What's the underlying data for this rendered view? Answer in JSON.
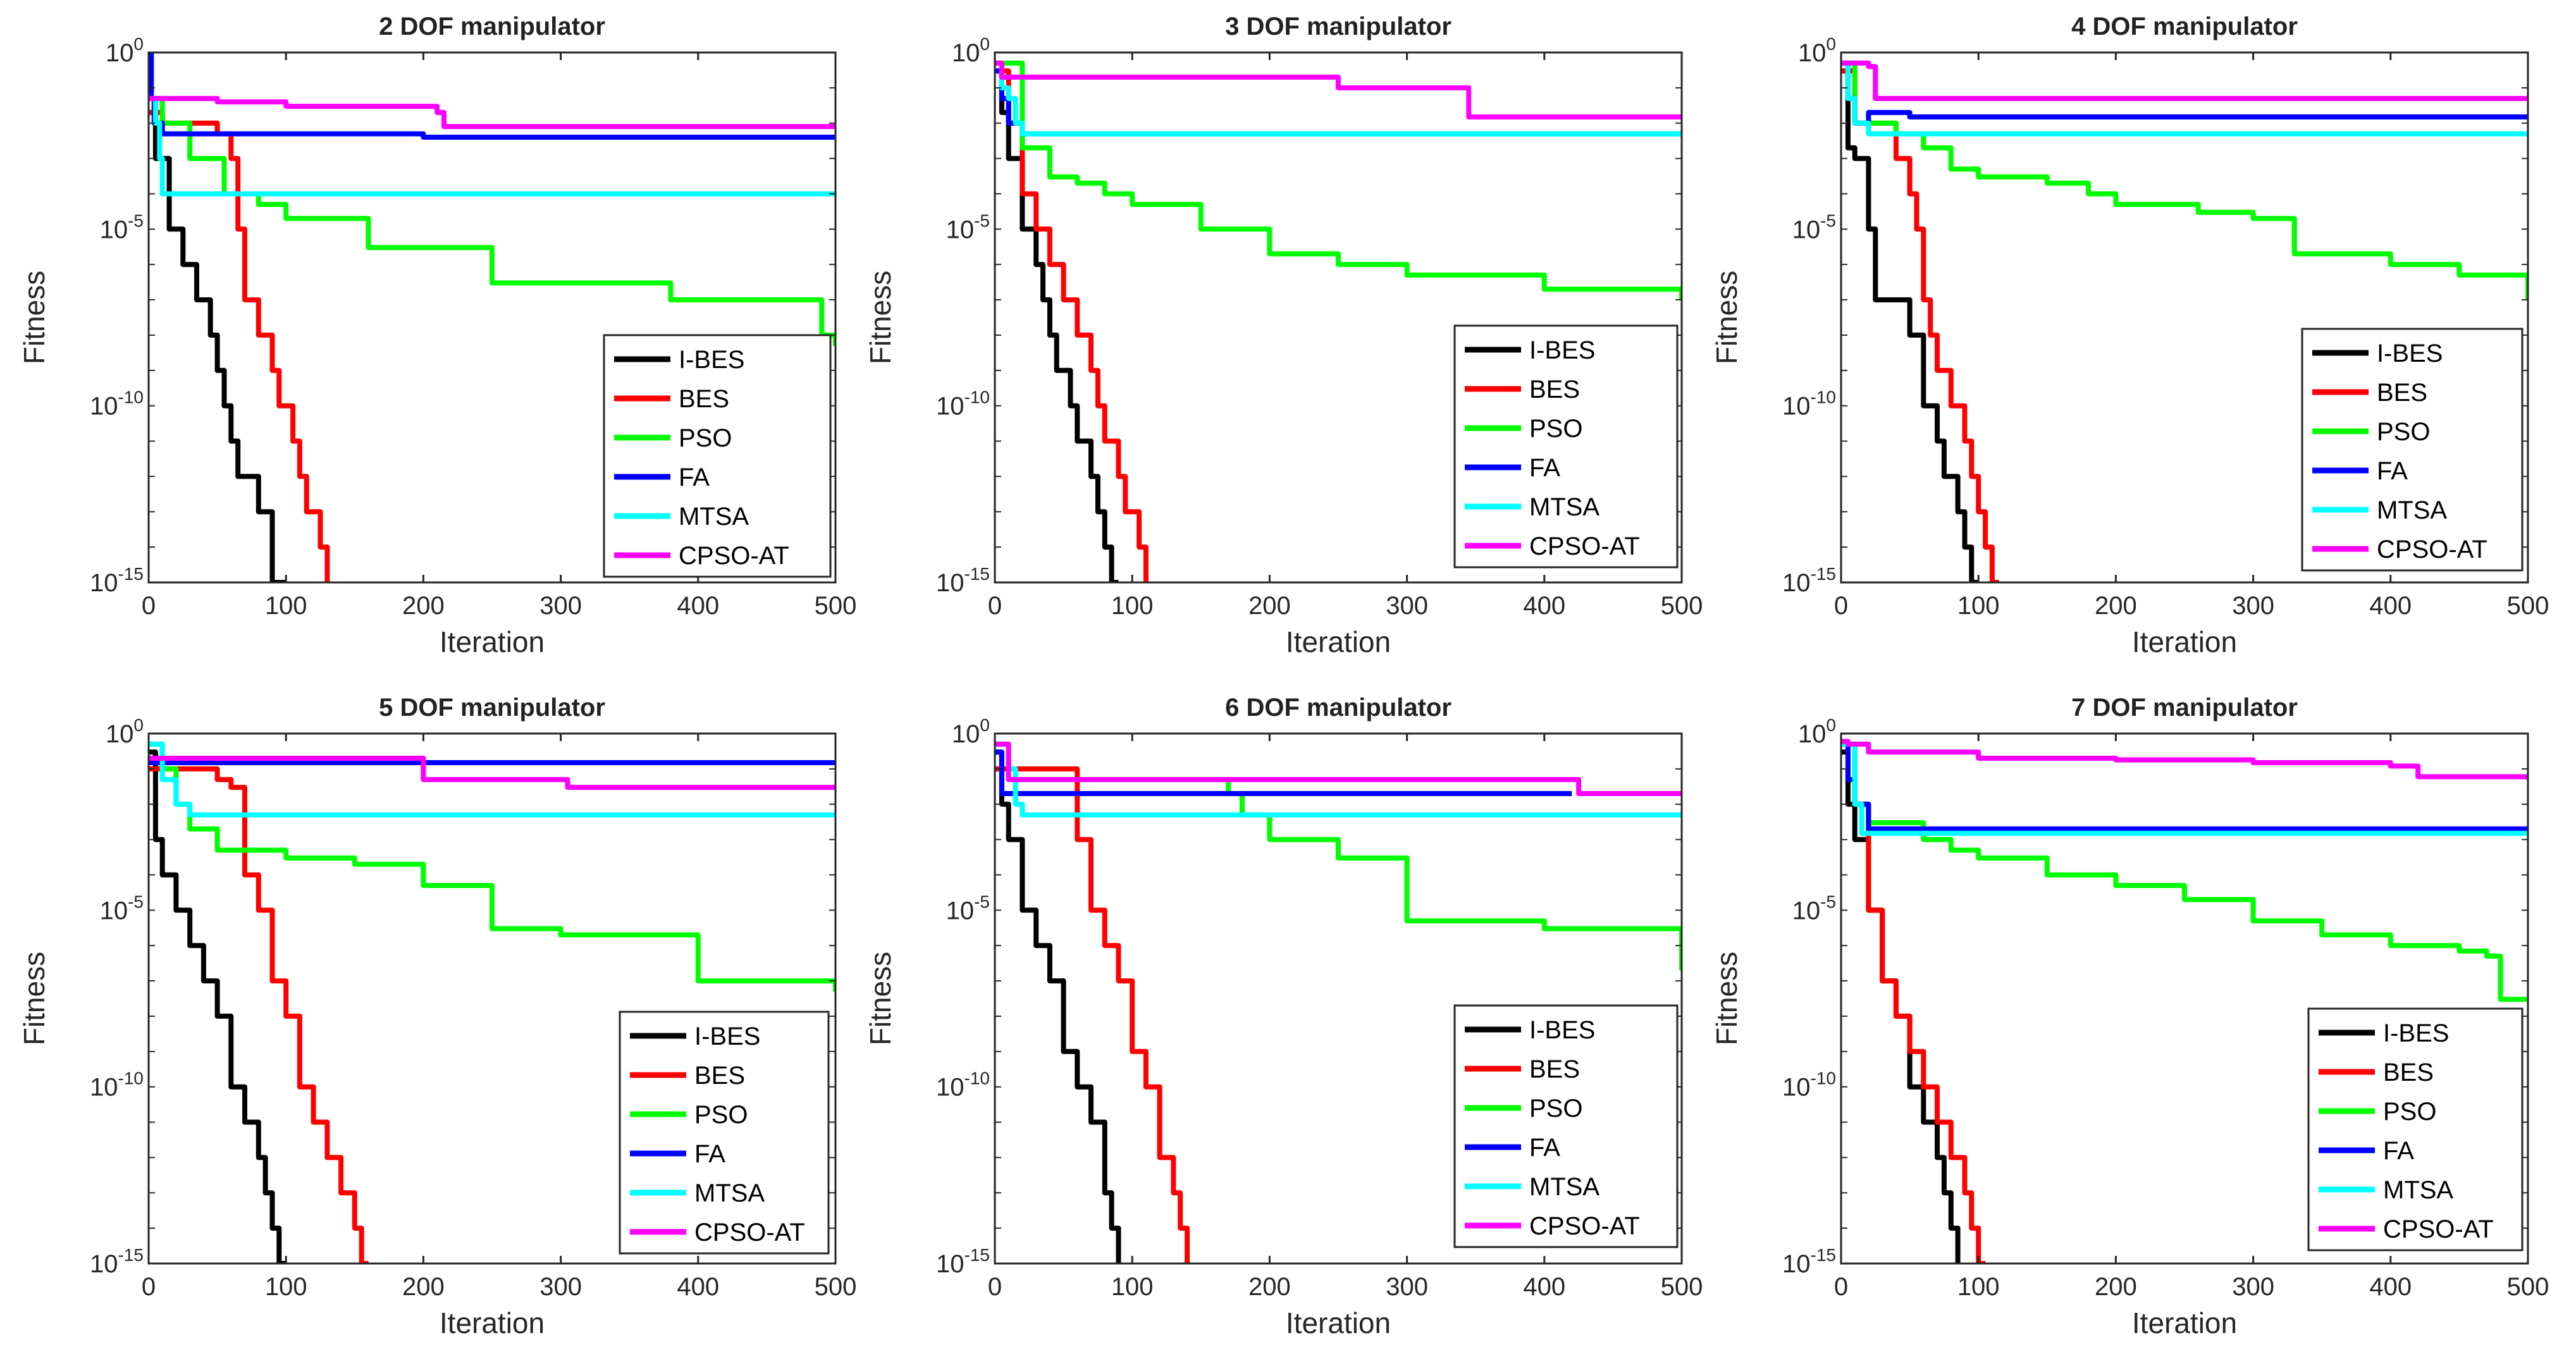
{
  "chart_data": [
    {
      "type": "line",
      "title": "2 DOF manipulator",
      "xlabel": "Iteration",
      "ylabel": "Fitness",
      "xlim": [
        0,
        500
      ],
      "ylim": [
        1e-15,
        1
      ],
      "yscale": "log",
      "xticks": [
        "0",
        "100",
        "200",
        "300",
        "400",
        "500"
      ],
      "series": [
        {
          "name": "I-BES",
          "color": "#000000",
          "x": [
            0,
            5,
            15,
            25,
            35,
            45,
            50,
            55,
            60,
            65,
            70,
            80,
            85,
            90,
            95,
            100
          ],
          "y": [
            0.02,
            0.001,
            1e-05,
            1e-06,
            1e-07,
            1e-08,
            1e-09,
            1e-10,
            1e-11,
            1e-12,
            1e-12,
            1e-13,
            1e-13,
            1e-15,
            1e-15,
            1e-15
          ]
        },
        {
          "name": "BES",
          "color": "#ff0000",
          "x": [
            0,
            10,
            50,
            60,
            65,
            70,
            80,
            90,
            95,
            100,
            105,
            110,
            115,
            120,
            125,
            130
          ],
          "y": [
            0.02,
            0.01,
            0.005,
            0.001,
            1e-05,
            1e-07,
            1e-08,
            1e-09,
            1e-10,
            1e-10,
            1e-11,
            1e-12,
            1e-13,
            1e-13,
            1e-14,
            1e-15
          ]
        },
        {
          "name": "PSO",
          "color": "#00ff00",
          "x": [
            0,
            10,
            30,
            55,
            80,
            100,
            160,
            250,
            380,
            490,
            500
          ],
          "y": [
            0.05,
            0.01,
            0.001,
            0.0001,
            5e-05,
            2e-05,
            3e-06,
            3e-07,
            1e-07,
            1e-08,
            5e-09
          ]
        },
        {
          "name": "FA",
          "color": "#0000ff",
          "x": [
            0,
            2,
            4,
            10,
            100,
            200,
            500
          ],
          "y": [
            1,
            0.05,
            0.01,
            0.005,
            0.005,
            0.004,
            0.004
          ]
        },
        {
          "name": "MTSA",
          "color": "#00ffff",
          "x": [
            0,
            5,
            8,
            10,
            20,
            50,
            500
          ],
          "y": [
            0.05,
            0.01,
            0.001,
            0.0001,
            0.0001,
            0.0001,
            0.0001
          ]
        },
        {
          "name": "CPSO-AT",
          "color": "#ff00ff",
          "x": [
            0,
            50,
            100,
            210,
            215,
            300,
            500
          ],
          "y": [
            0.05,
            0.04,
            0.03,
            0.02,
            0.008,
            0.008,
            0.008
          ]
        }
      ]
    },
    {
      "type": "line",
      "title": "3 DOF manipulator",
      "xlabel": "Iteration",
      "ylabel": "Fitness",
      "xlim": [
        0,
        500
      ],
      "ylim": [
        1e-15,
        1
      ],
      "yscale": "log",
      "xticks": [
        "0",
        "100",
        "200",
        "300",
        "400",
        "500"
      ],
      "series": [
        {
          "name": "I-BES",
          "color": "#000000",
          "x": [
            0,
            5,
            10,
            20,
            30,
            35,
            40,
            45,
            55,
            60,
            70,
            75,
            80,
            85,
            90
          ],
          "y": [
            0.3,
            0.02,
            0.001,
            1e-05,
            1e-06,
            1e-07,
            1e-08,
            1e-09,
            1e-10,
            1e-11,
            1e-12,
            1e-13,
            1e-14,
            1e-15,
            1e-15
          ]
        },
        {
          "name": "BES",
          "color": "#ff0000",
          "x": [
            0,
            10,
            20,
            30,
            40,
            50,
            60,
            70,
            75,
            80,
            90,
            95,
            100,
            105,
            110
          ],
          "y": [
            0.3,
            0.01,
            0.0001,
            1e-05,
            1e-06,
            1e-07,
            1e-08,
            1e-09,
            1e-10,
            1e-11,
            1e-12,
            1e-13,
            1e-13,
            1e-14,
            1e-15
          ]
        },
        {
          "name": "PSO",
          "color": "#00ff00",
          "x": [
            0,
            20,
            40,
            60,
            80,
            100,
            150,
            200,
            250,
            300,
            400,
            500
          ],
          "y": [
            0.5,
            0.002,
            0.0003,
            0.0002,
            0.0001,
            5e-05,
            1e-05,
            2e-06,
            1e-06,
            5e-07,
            2e-07,
            1e-07
          ]
        },
        {
          "name": "FA",
          "color": "#0000ff",
          "x": [
            0,
            5,
            10,
            20,
            500
          ],
          "y": [
            0.3,
            0.05,
            0.01,
            0.005,
            0.005
          ]
        },
        {
          "name": "MTSA",
          "color": "#00ffff",
          "x": [
            0,
            5,
            10,
            15,
            20,
            500
          ],
          "y": [
            0.5,
            0.1,
            0.05,
            0.01,
            0.005,
            0.005
          ]
        },
        {
          "name": "CPSO-AT",
          "color": "#ff00ff",
          "x": [
            0,
            5,
            100,
            200,
            250,
            340,
            345,
            500
          ],
          "y": [
            0.5,
            0.2,
            0.2,
            0.2,
            0.1,
            0.1,
            0.015,
            0.015
          ]
        }
      ]
    },
    {
      "type": "line",
      "title": "4 DOF manipulator",
      "xlabel": "Iteration",
      "ylabel": "Fitness",
      "xlim": [
        0,
        500
      ],
      "ylim": [
        1e-15,
        1
      ],
      "yscale": "log",
      "xticks": [
        "0",
        "100",
        "200",
        "300",
        "400",
        "500"
      ],
      "series": [
        {
          "name": "I-BES",
          "color": "#000000",
          "x": [
            0,
            5,
            10,
            20,
            25,
            45,
            50,
            60,
            70,
            75,
            85,
            90,
            95,
            100
          ],
          "y": [
            0.3,
            0.002,
            0.001,
            1e-05,
            1e-07,
            1e-07,
            1e-08,
            1e-10,
            1e-11,
            1e-12,
            1e-13,
            1e-14,
            1e-15,
            1e-15
          ]
        },
        {
          "name": "BES",
          "color": "#ff0000",
          "x": [
            0,
            10,
            40,
            50,
            55,
            60,
            65,
            70,
            80,
            90,
            95,
            100,
            105,
            110,
            115
          ],
          "y": [
            0.3,
            0.01,
            0.001,
            0.0001,
            1e-05,
            1e-07,
            1e-08,
            1e-09,
            1e-10,
            1e-11,
            1e-12,
            1e-13,
            1e-14,
            1e-15,
            1e-15
          ]
        },
        {
          "name": "PSO",
          "color": "#00ff00",
          "x": [
            0,
            10,
            40,
            60,
            80,
            100,
            150,
            180,
            200,
            260,
            300,
            330,
            400,
            450,
            500
          ],
          "y": [
            0.5,
            0.01,
            0.005,
            0.002,
            0.0005,
            0.0003,
            0.0002,
            0.0001,
            5e-05,
            3e-05,
            2e-05,
            2e-06,
            1e-06,
            5e-07,
            1e-07
          ]
        },
        {
          "name": "FA",
          "color": "#0000ff",
          "x": [
            0,
            5,
            10,
            20,
            30,
            50,
            500
          ],
          "y": [
            0.5,
            0.05,
            0.01,
            0.02,
            0.02,
            0.015,
            0.015
          ]
        },
        {
          "name": "MTSA",
          "color": "#00ffff",
          "x": [
            0,
            5,
            10,
            20,
            500
          ],
          "y": [
            0.5,
            0.05,
            0.01,
            0.005,
            0.005
          ]
        },
        {
          "name": "CPSO-AT",
          "color": "#ff00ff",
          "x": [
            0,
            20,
            25,
            500
          ],
          "y": [
            0.5,
            0.4,
            0.05,
            0.05
          ]
        }
      ]
    },
    {
      "type": "line",
      "title": "5 DOF manipulator",
      "xlabel": "Iteration",
      "ylabel": "Fitness",
      "xlim": [
        0,
        500
      ],
      "ylim": [
        1e-15,
        1
      ],
      "yscale": "log",
      "xticks": [
        "0",
        "100",
        "200",
        "300",
        "400",
        "500"
      ],
      "series": [
        {
          "name": "I-BES",
          "color": "#000000",
          "x": [
            0,
            5,
            10,
            20,
            30,
            40,
            50,
            60,
            70,
            80,
            85,
            90,
            95,
            100
          ],
          "y": [
            0.3,
            0.001,
            0.0001,
            1e-05,
            1e-06,
            1e-07,
            1e-08,
            1e-10,
            1e-11,
            1e-12,
            1e-13,
            1e-14,
            1e-15,
            1e-15
          ]
        },
        {
          "name": "BES",
          "color": "#ff0000",
          "x": [
            0,
            50,
            60,
            70,
            80,
            90,
            100,
            110,
            120,
            130,
            140,
            150,
            155,
            160
          ],
          "y": [
            0.1,
            0.05,
            0.03,
            0.0001,
            1e-05,
            1e-07,
            1e-08,
            1e-10,
            1e-11,
            1e-12,
            1e-13,
            1e-14,
            1e-15,
            1e-15
          ]
        },
        {
          "name": "PSO",
          "color": "#00ff00",
          "x": [
            0,
            10,
            20,
            30,
            50,
            100,
            150,
            200,
            250,
            300,
            400,
            500
          ],
          "y": [
            0.5,
            0.1,
            0.01,
            0.002,
            0.0005,
            0.0003,
            0.0002,
            5e-05,
            3e-06,
            2e-06,
            1e-07,
            5e-08
          ]
        },
        {
          "name": "FA",
          "color": "#0000ff",
          "x": [
            0,
            500
          ],
          "y": [
            0.15,
            0.15
          ]
        },
        {
          "name": "MTSA",
          "color": "#00ffff",
          "x": [
            0,
            10,
            20,
            30,
            500
          ],
          "y": [
            0.5,
            0.05,
            0.01,
            0.005,
            0.005
          ]
        },
        {
          "name": "CPSO-AT",
          "color": "#ff00ff",
          "x": [
            0,
            100,
            200,
            300,
            305,
            500
          ],
          "y": [
            0.2,
            0.2,
            0.05,
            0.05,
            0.03,
            0.03
          ]
        }
      ]
    },
    {
      "type": "line",
      "title": "6 DOF manipulator",
      "xlabel": "Iteration",
      "ylabel": "Fitness",
      "xlim": [
        0,
        500
      ],
      "ylim": [
        1e-15,
        1
      ],
      "yscale": "log",
      "xticks": [
        "0",
        "100",
        "200",
        "300",
        "400",
        "500"
      ],
      "series": [
        {
          "name": "I-BES",
          "color": "#000000",
          "x": [
            0,
            5,
            10,
            20,
            30,
            40,
            50,
            60,
            70,
            80,
            85,
            90
          ],
          "y": [
            0.3,
            0.01,
            0.001,
            1e-05,
            1e-06,
            1e-07,
            1e-09,
            1e-10,
            1e-11,
            1e-13,
            1e-14,
            1e-15
          ]
        },
        {
          "name": "BES",
          "color": "#ff0000",
          "x": [
            0,
            50,
            60,
            70,
            80,
            90,
            100,
            110,
            120,
            130,
            135,
            140
          ],
          "y": [
            0.1,
            0.1,
            0.001,
            1e-05,
            1e-06,
            1e-07,
            1e-09,
            1e-10,
            1e-12,
            1e-13,
            1e-14,
            1e-15
          ]
        },
        {
          "name": "PSO",
          "color": "#00ff00",
          "x": [
            0,
            10,
            50,
            100,
            150,
            170,
            180,
            200,
            250,
            300,
            400,
            500
          ],
          "y": [
            0.5,
            0.05,
            0.05,
            0.05,
            0.05,
            0.02,
            0.005,
            0.001,
            0.0003,
            5e-06,
            3e-06,
            2e-07
          ]
        },
        {
          "name": "FA",
          "color": "#0000ff",
          "x": [
            0,
            5,
            10,
            420
          ],
          "y": [
            0.3,
            0.02,
            0.02,
            0.02
          ]
        },
        {
          "name": "MTSA",
          "color": "#00ffff",
          "x": [
            0,
            10,
            15,
            20,
            500
          ],
          "y": [
            0.5,
            0.1,
            0.01,
            0.005,
            0.005
          ]
        },
        {
          "name": "CPSO-AT",
          "color": "#ff00ff",
          "x": [
            0,
            10,
            400,
            420,
            425,
            500
          ],
          "y": [
            0.5,
            0.05,
            0.05,
            0.05,
            0.02,
            0.02
          ]
        }
      ]
    },
    {
      "type": "line",
      "title": "7 DOF manipulator",
      "xlabel": "Iteration",
      "ylabel": "Fitness",
      "xlim": [
        0,
        500
      ],
      "ylim": [
        1e-15,
        1
      ],
      "yscale": "log",
      "xticks": [
        "0",
        "100",
        "200",
        "300",
        "400",
        "500"
      ],
      "series": [
        {
          "name": "I-BES",
          "color": "#000000",
          "x": [
            0,
            5,
            10,
            20,
            30,
            40,
            50,
            60,
            70,
            75,
            80,
            85
          ],
          "y": [
            0.3,
            0.01,
            0.001,
            1e-05,
            1e-07,
            1e-08,
            1e-10,
            1e-11,
            1e-12,
            1e-13,
            1e-14,
            1e-15
          ]
        },
        {
          "name": "BES",
          "color": "#ff0000",
          "x": [
            0,
            10,
            20,
            30,
            40,
            50,
            60,
            70,
            80,
            90,
            95,
            100,
            105
          ],
          "y": [
            0.5,
            0.01,
            1e-05,
            1e-07,
            1e-08,
            1e-09,
            1e-10,
            1e-11,
            1e-12,
            1e-13,
            1e-14,
            1e-15,
            1e-15
          ]
        },
        {
          "name": "PSO",
          "color": "#00ff00",
          "x": [
            0,
            10,
            20,
            40,
            60,
            80,
            100,
            150,
            200,
            250,
            300,
            350,
            400,
            450,
            470,
            480,
            500
          ],
          "y": [
            0.5,
            0.01,
            0.003,
            0.003,
            0.001,
            0.0005,
            0.0003,
            0.0001,
            5e-05,
            2e-05,
            5e-06,
            2e-06,
            1e-06,
            7e-07,
            5e-07,
            3e-08,
            3e-08
          ]
        },
        {
          "name": "FA",
          "color": "#0000ff",
          "x": [
            0,
            5,
            10,
            20,
            500
          ],
          "y": [
            0.5,
            0.05,
            0.01,
            0.002,
            0.002
          ]
        },
        {
          "name": "MTSA",
          "color": "#00ffff",
          "x": [
            0,
            10,
            15,
            500
          ],
          "y": [
            0.5,
            0.01,
            0.0015,
            0.0015
          ]
        },
        {
          "name": "CPSO-AT",
          "color": "#ff00ff",
          "x": [
            0,
            5,
            20,
            100,
            200,
            300,
            400,
            420,
            500
          ],
          "y": [
            0.6,
            0.5,
            0.3,
            0.2,
            0.18,
            0.15,
            0.12,
            0.06,
            0.05
          ]
        }
      ]
    }
  ]
}
